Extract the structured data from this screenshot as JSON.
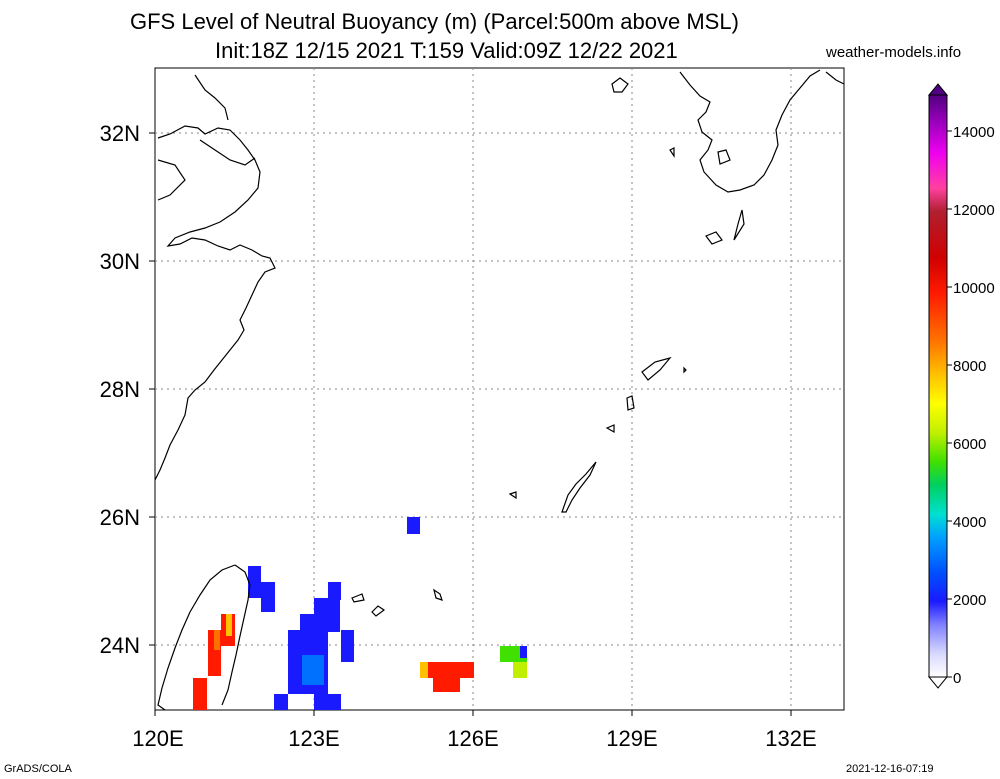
{
  "title": {
    "line1": "GFS Level of Neutral Buoyancy (m) (Parcel:500m above MSL)",
    "line2": "Init:18Z 12/15 2021 T:159 Valid:09Z 12/22 2021"
  },
  "source": "weather-models.info",
  "footer": {
    "left": "GrADS/COLA",
    "right": "2021-12-16-07:19"
  },
  "map": {
    "lon_range": [
      120,
      133
    ],
    "lat_range": [
      23,
      33
    ],
    "lat_labels": [
      "24N",
      "26N",
      "28N",
      "30N",
      "32N"
    ],
    "lon_labels": [
      "120E",
      "123E",
      "126E",
      "129E",
      "132E"
    ]
  },
  "colorbar": {
    "labels": [
      "0",
      "2000",
      "4000",
      "6000",
      "8000",
      "10000",
      "12000",
      "14000"
    ],
    "min": 0,
    "max": 15000
  },
  "colors": {
    "accent_low": "#1a1aff",
    "accent_high": "#ff1a00"
  }
}
